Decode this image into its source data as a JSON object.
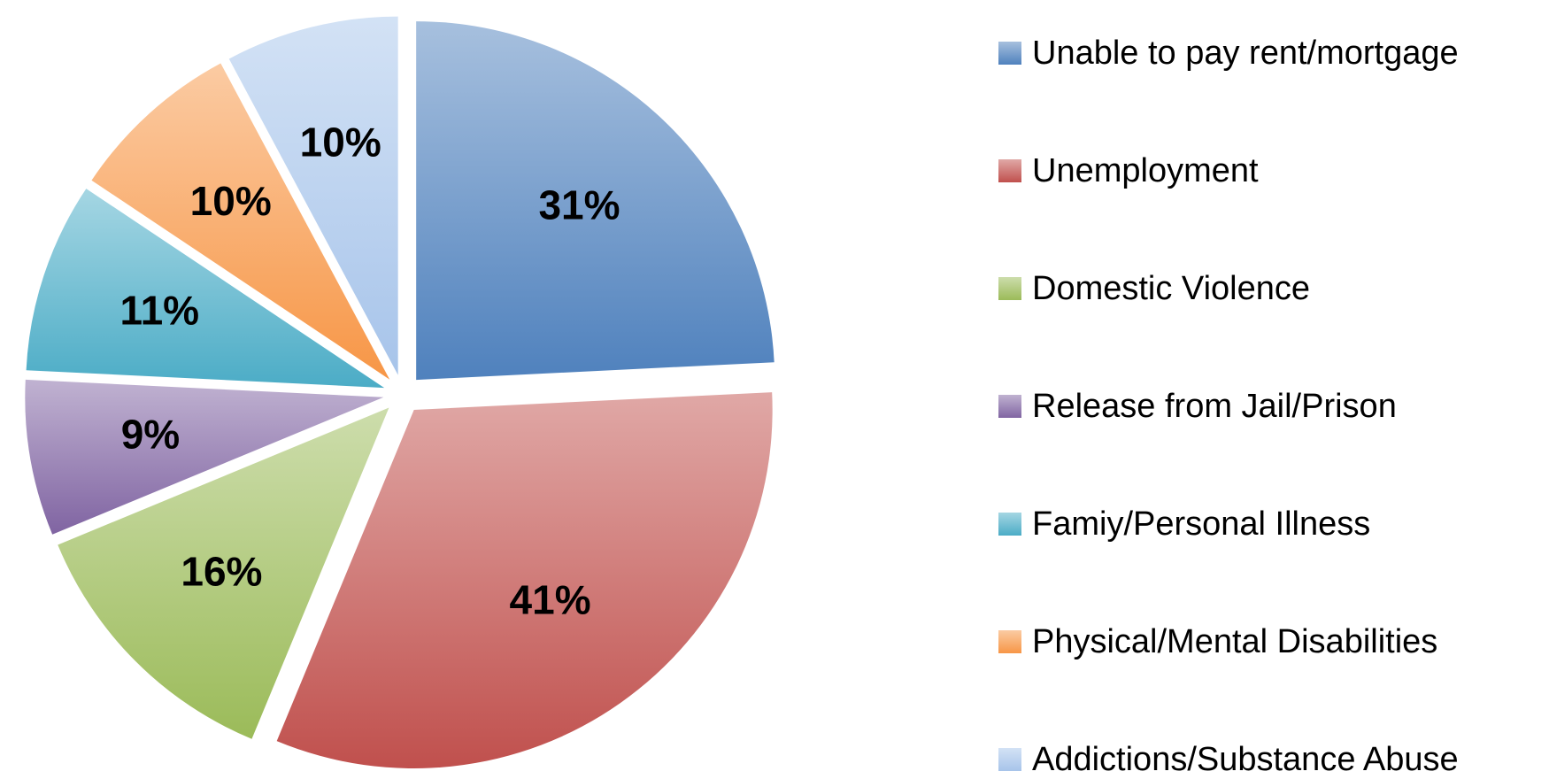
{
  "chart_data": {
    "type": "pie",
    "categories": [
      "Unable to pay rent/mortgage",
      "Unemployment",
      "Domestic Violence",
      "Release from Jail/Prison",
      "Famiy/Personal Illness",
      "Physical/Mental Disabilities",
      "Addictions/Substance Abuse"
    ],
    "values": [
      31,
      41,
      16,
      9,
      11,
      10,
      10
    ],
    "value_labels": [
      "31%",
      "41%",
      "16%",
      "9%",
      "11%",
      "10%",
      "10%"
    ],
    "colors": [
      "#4f81bd",
      "#c0504d",
      "#9bbb59",
      "#8064a2",
      "#4bacc6",
      "#f79646",
      "#a7c4ea"
    ],
    "legend": "right"
  }
}
